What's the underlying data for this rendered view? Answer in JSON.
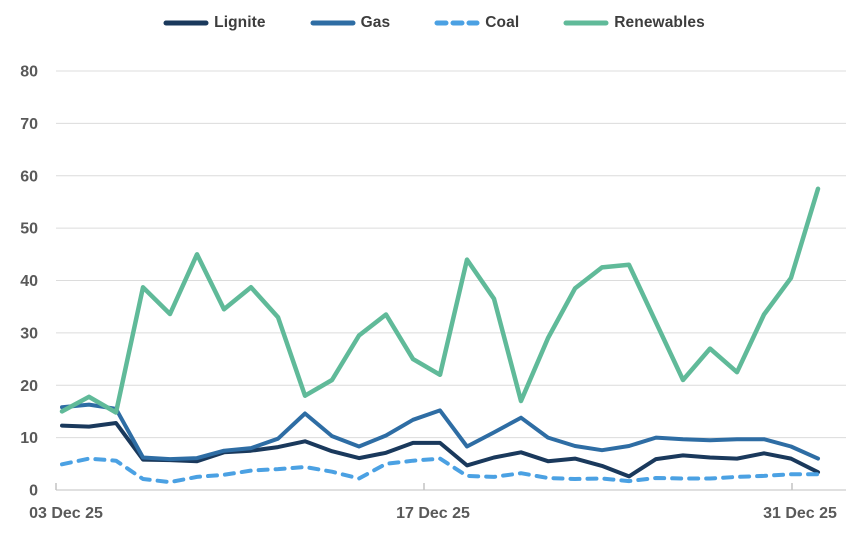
{
  "legend": {
    "items": [
      {
        "label": "Lignite",
        "color": "#1a395c",
        "dashed": false
      },
      {
        "label": "Gas",
        "color": "#2e6da4",
        "dashed": false
      },
      {
        "label": "Coal",
        "color": "#4ba1e3",
        "dashed": true
      },
      {
        "label": "Renewables",
        "color": "#60ba99",
        "dashed": false
      }
    ]
  },
  "chart_data": {
    "type": "line",
    "title": "",
    "xlabel": "",
    "ylabel": "",
    "ylim": [
      0,
      80
    ],
    "yticks": [
      0,
      10,
      20,
      30,
      40,
      50,
      60,
      70,
      80
    ],
    "grid": "horizontal",
    "legend_position": "top",
    "x_tick_labels": [
      "03 Dec 25",
      "17 Dec 25",
      "31 Dec 25"
    ],
    "categories": [
      "03 Dec 25",
      "04 Dec 25",
      "05 Dec 25",
      "06 Dec 25",
      "07 Dec 25",
      "08 Dec 25",
      "09 Dec 25",
      "10 Dec 25",
      "11 Dec 25",
      "12 Dec 25",
      "13 Dec 25",
      "14 Dec 25",
      "15 Dec 25",
      "16 Dec 25",
      "17 Dec 25",
      "18 Dec 25",
      "19 Dec 25",
      "20 Dec 25",
      "21 Dec 25",
      "22 Dec 25",
      "23 Dec 25",
      "24 Dec 25",
      "25 Dec 25",
      "26 Dec 25",
      "27 Dec 25",
      "28 Dec 25",
      "29 Dec 25",
      "30 Dec 25",
      "31 Dec 25"
    ],
    "series": [
      {
        "name": "Lignite",
        "color": "#1a395c",
        "style": "solid",
        "values": [
          12.3,
          12.1,
          12.8,
          5.8,
          5.7,
          5.5,
          7.2,
          7.5,
          8.2,
          9.3,
          7.4,
          6.1,
          7.1,
          9.0,
          9.0,
          4.7,
          6.2,
          7.2,
          5.5,
          6.0,
          4.6,
          2.6,
          5.9,
          6.6,
          6.2,
          6.0,
          7.0,
          6.0,
          3.4
        ]
      },
      {
        "name": "Gas",
        "color": "#2e6da4",
        "style": "solid",
        "values": [
          15.8,
          16.3,
          15.5,
          6.2,
          5.9,
          6.1,
          7.5,
          8.0,
          9.8,
          14.6,
          10.3,
          8.3,
          10.4,
          13.4,
          15.2,
          8.3,
          11.0,
          13.8,
          10.0,
          8.4,
          7.6,
          8.4,
          10.0,
          9.7,
          9.5,
          9.7,
          9.7,
          8.3,
          6.0
        ]
      },
      {
        "name": "Coal",
        "color": "#4ba1e3",
        "style": "dashed",
        "values": [
          4.9,
          6.0,
          5.6,
          2.1,
          1.5,
          2.5,
          2.9,
          3.7,
          4.0,
          4.4,
          3.5,
          2.2,
          5.0,
          5.6,
          6.0,
          2.7,
          2.5,
          3.2,
          2.3,
          2.1,
          2.2,
          1.7,
          2.3,
          2.2,
          2.2,
          2.5,
          2.7,
          3.0,
          3.0
        ]
      },
      {
        "name": "Renewables",
        "color": "#60ba99",
        "style": "solid",
        "values": [
          15.0,
          17.8,
          14.8,
          38.7,
          33.6,
          45.0,
          34.5,
          38.7,
          33.0,
          18.0,
          21.0,
          29.5,
          33.5,
          25.0,
          22.0,
          44.0,
          36.5,
          17.0,
          29.0,
          38.5,
          42.5,
          43.0,
          32.0,
          21.0,
          27.0,
          22.5,
          33.5,
          40.5,
          57.5
        ]
      }
    ],
    "colors": {
      "grid": "#dcdcdc",
      "axis": "#c2c2c2",
      "tick_text": "#595959",
      "legend_text": "#3d3d3d"
    }
  }
}
